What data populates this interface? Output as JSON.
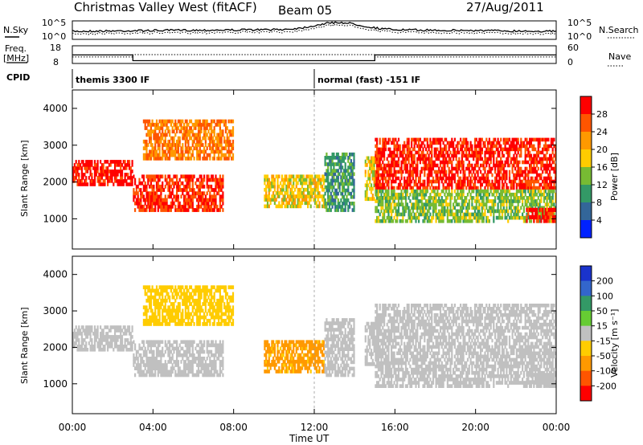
{
  "header": {
    "title": "Christmas Valley West (fitACF)",
    "beam": "Beam 05",
    "date": "27/Aug/2011"
  },
  "noise_panel": {
    "left_label": "N.Sky",
    "right_label": "N.Search",
    "left_ticks": [
      "10^5",
      "10^0"
    ],
    "right_ticks": [
      "10^5",
      "10^0"
    ]
  },
  "freq_panel": {
    "left_label_1": "Freq.",
    "left_label_2": "[MHz]",
    "right_label": "Nave",
    "left_ticks": [
      "18",
      "8"
    ],
    "right_ticks": [
      "60",
      "0"
    ],
    "freq_mhz": [
      {
        "t0": 0.0,
        "t1": 3.0,
        "value": 12.8
      },
      {
        "t0": 3.0,
        "t1": 15.0,
        "value": 9.6
      },
      {
        "t0": 15.0,
        "t1": 24.0,
        "value": 12.8
      }
    ],
    "nave": [
      {
        "t0": 0.0,
        "t1": 3.0,
        "value": 22
      },
      {
        "t0": 3.0,
        "t1": 15.0,
        "value": 30
      },
      {
        "t0": 15.0,
        "t1": 24.0,
        "value": 22
      }
    ]
  },
  "cpid": {
    "label": "CPID",
    "entries": [
      {
        "text": "themis 3300 IF",
        "t": 0.0
      },
      {
        "text": "normal (fast) -151 IF",
        "t": 12.0
      }
    ]
  },
  "axes": {
    "y_label": "Slant Range [km]",
    "y_ticks": [
      1000,
      2000,
      3000,
      4000
    ],
    "y_range": [
      180,
      4500
    ],
    "x_label": "Time UT",
    "x_ticks": [
      "00:00",
      "04:00",
      "08:00",
      "12:00",
      "16:00",
      "20:00",
      "00:00"
    ],
    "x_range_hours": [
      0,
      24
    ]
  },
  "power_colorbar": {
    "label": "Power [dB]",
    "ticks": [
      "28",
      "24",
      "20",
      "16",
      "12",
      "8",
      "4"
    ],
    "colors": [
      "#ff0000",
      "#ff5500",
      "#ff9900",
      "#ffcc00",
      "#77bb33",
      "#339966",
      "#336699",
      "#0022ff"
    ]
  },
  "velocity_colorbar": {
    "label": "Velocity [m s⁻¹]",
    "ticks": [
      "200",
      "100",
      "50",
      "15",
      "-15",
      "-50",
      "-100",
      "-200"
    ],
    "colors": [
      "#1a33cc",
      "#3366cc",
      "#339966",
      "#66cc33",
      "#c0c0c0",
      "#ffcc00",
      "#ff9900",
      "#ff5500",
      "#ff0000"
    ]
  },
  "chart_data": {
    "type": "heatmap",
    "panels": [
      "power",
      "velocity"
    ],
    "echo_regions": [
      {
        "t0": 0.0,
        "t1": 3.0,
        "r0": 1900,
        "r1": 2600,
        "power": 28,
        "velocity": 0
      },
      {
        "t0": 3.0,
        "t1": 7.5,
        "r0": 1200,
        "r1": 2200,
        "power": 26,
        "velocity": 0
      },
      {
        "t0": 3.5,
        "t1": 8.0,
        "r0": 2600,
        "r1": 3700,
        "power": 22,
        "velocity": -30
      },
      {
        "t0": 9.5,
        "t1": 12.5,
        "r0": 1300,
        "r1": 2200,
        "power": 16,
        "velocity": -60
      },
      {
        "t0": 12.5,
        "t1": 14.0,
        "r0": 1200,
        "r1": 2800,
        "power": 8,
        "velocity": 0
      },
      {
        "t0": 14.5,
        "t1": 15.0,
        "r0": 1500,
        "r1": 2700,
        "power": 16,
        "velocity": 0
      },
      {
        "t0": 15.0,
        "t1": 24.0,
        "r0": 1800,
        "r1": 3200,
        "power": 27,
        "velocity": 0
      },
      {
        "t0": 15.0,
        "t1": 24.0,
        "r0": 900,
        "r1": 1800,
        "power": 12,
        "velocity": 0
      },
      {
        "t0": 22.5,
        "t1": 24.0,
        "r0": 900,
        "r1": 1300,
        "power": 28,
        "velocity": 0
      }
    ]
  }
}
